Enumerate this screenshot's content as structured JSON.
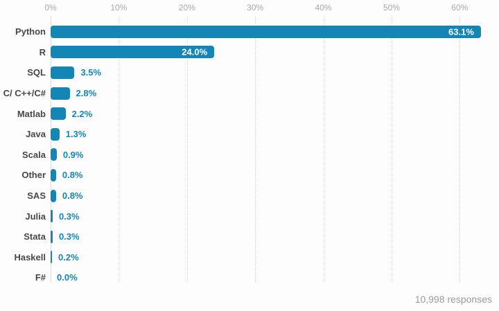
{
  "chart_data": {
    "type": "bar",
    "orientation": "horizontal",
    "title": "",
    "xlabel": "",
    "ylabel": "",
    "categories": [
      "Python",
      "R",
      "SQL",
      "C/ C++/C#",
      "Matlab",
      "Java",
      "Scala",
      "Other",
      "SAS",
      "Julia",
      "Stata",
      "Haskell",
      "F#"
    ],
    "values": [
      63.1,
      24.0,
      3.5,
      2.8,
      2.2,
      1.3,
      0.9,
      0.8,
      0.8,
      0.3,
      0.3,
      0.2,
      0.0
    ],
    "value_labels": [
      "63.1%",
      "24.0%",
      "3.5%",
      "2.8%",
      "2.2%",
      "1.3%",
      "0.9%",
      "0.8%",
      "0.8%",
      "0.3%",
      "0.3%",
      "0.2%",
      "0.0%"
    ],
    "x_ticks": [
      "0%",
      "10%",
      "20%",
      "30%",
      "40%",
      "50%",
      "60%"
    ],
    "xlim": [
      0,
      60
    ],
    "grid": "vertical-dotted",
    "legend": "none",
    "bar_color": "#1386b5",
    "inside_label_color": "#ffffff",
    "outside_label_color": "#1386b5",
    "axis_tick_color": "#a5a9ae",
    "category_label_color": "#474747",
    "gridline_color": "#dfdfe3"
  },
  "footer": {
    "note": "10,998 responses"
  }
}
